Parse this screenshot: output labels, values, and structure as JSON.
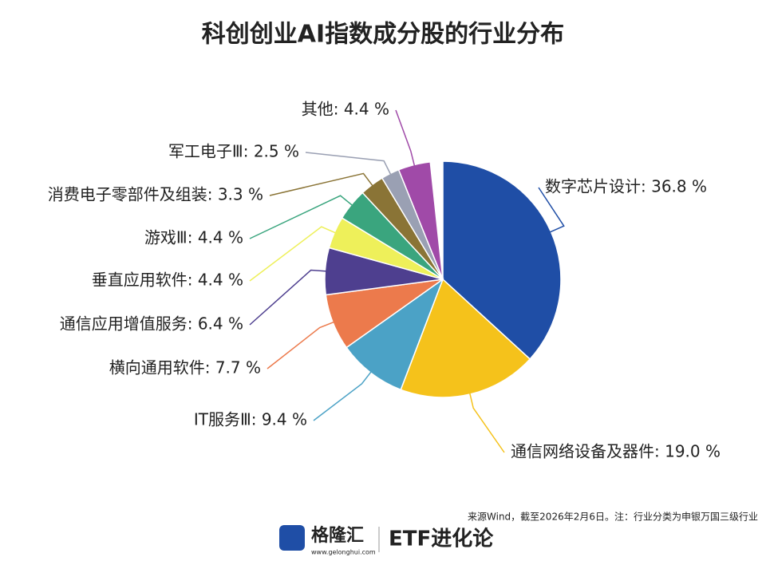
{
  "chart_data": {
    "type": "pie",
    "title": "科创创业AI指数成分股的行业分布",
    "labels": [
      "数字芯片设计: 36.8 %",
      "通信网络设备及器件: 19.0 %",
      "IT服务Ⅲ: 9.4 %",
      "横向通用软件: 7.7 %",
      "通信应用增值服务: 6.4 %",
      "垂直应用软件: 4.4 %",
      "游戏Ⅲ: 4.4 %",
      "消费电子零部件及组装: 3.3 %",
      "军工电子Ⅲ: 2.5 %",
      "其他: 4.4 %"
    ],
    "values": [
      36.8,
      19.0,
      9.4,
      7.7,
      6.4,
      4.4,
      4.4,
      3.3,
      2.5,
      4.4
    ],
    "colors": [
      "#1f4ea6",
      "#f5c21b",
      "#4ba2c6",
      "#ec7a4c",
      "#4e3f8f",
      "#eef05a",
      "#3aa57e",
      "#8a7436",
      "#9aa0b3",
      "#a04aa8"
    ],
    "source": "来源Wind，截至2026年2月6日。注：行业分类为申银万国三级行业",
    "brand": "格隆汇",
    "brand_url": "www.gelonghui.com",
    "brand2": "ETF进化论"
  }
}
